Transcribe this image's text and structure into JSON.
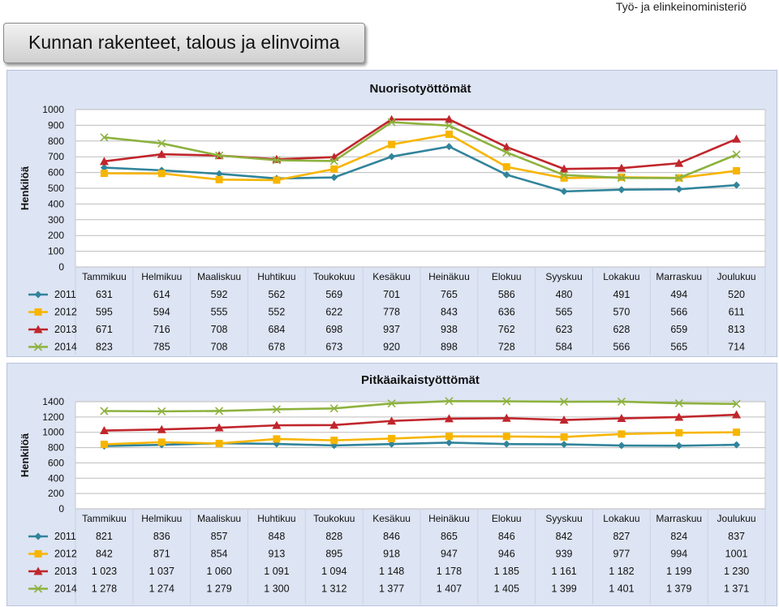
{
  "header": {
    "ministry": "Työ- ja elinkeinoministeriö",
    "title": "Kunnan rakenteet, talous ja elinvoima"
  },
  "chart_data": [
    {
      "type": "line",
      "title": "Nuorisotyöttömät",
      "ylabel": "Henkilöä",
      "ylim": [
        0,
        1000
      ],
      "yticks": [
        "0",
        "100",
        "200",
        "300",
        "400",
        "500",
        "600",
        "700",
        "800",
        "900",
        "1000"
      ],
      "categories": [
        "Tammikuu",
        "Helmikuu",
        "Maaliskuu",
        "Huhtikuu",
        "Toukokuu",
        "Kesäkuu",
        "Heinäkuu",
        "Elokuu",
        "Syyskuu",
        "Lokakuu",
        "Marraskuu",
        "Joulukuu"
      ],
      "grid": true,
      "legend": "data-table",
      "series": [
        {
          "name": "2011",
          "color": "#31849b",
          "marker": "diamond",
          "values": [
            631,
            614,
            592,
            562,
            569,
            701,
            765,
            586,
            480,
            491,
            494,
            520
          ],
          "labels": [
            "631",
            "614",
            "592",
            "562",
            "569",
            "701",
            "765",
            "586",
            "480",
            "491",
            "494",
            "520"
          ]
        },
        {
          "name": "2012",
          "color": "#f7b500",
          "marker": "square",
          "values": [
            595,
            594,
            555,
            552,
            622,
            778,
            843,
            636,
            565,
            570,
            566,
            611
          ],
          "labels": [
            "595",
            "594",
            "555",
            "552",
            "622",
            "778",
            "843",
            "636",
            "565",
            "570",
            "566",
            "611"
          ]
        },
        {
          "name": "2013",
          "color": "#c0262c",
          "marker": "triangle",
          "values": [
            671,
            716,
            708,
            684,
            698,
            937,
            938,
            762,
            623,
            628,
            659,
            813
          ],
          "labels": [
            "671",
            "716",
            "708",
            "684",
            "698",
            "937",
            "938",
            "762",
            "623",
            "628",
            "659",
            "813"
          ]
        },
        {
          "name": "2014",
          "color": "#8db23f",
          "marker": "x",
          "values": [
            823,
            785,
            708,
            678,
            673,
            920,
            898,
            728,
            584,
            566,
            565,
            714
          ],
          "labels": [
            "823",
            "785",
            "708",
            "678",
            "673",
            "920",
            "898",
            "728",
            "584",
            "566",
            "565",
            "714"
          ]
        }
      ]
    },
    {
      "type": "line",
      "title": "Pitkäaikaistyöttömät",
      "ylabel": "Henkilöä",
      "ylim": [
        0,
        1400
      ],
      "yticks": [
        "0",
        "200",
        "400",
        "600",
        "800",
        "1000",
        "1200",
        "1400"
      ],
      "categories": [
        "Tammikuu",
        "Helmikuu",
        "Maaliskuu",
        "Huhtikuu",
        "Toukokuu",
        "Kesäkuu",
        "Heinäkuu",
        "Elokuu",
        "Syyskuu",
        "Lokakuu",
        "Marraskuu",
        "Joulukuu"
      ],
      "grid": true,
      "legend": "data-table",
      "series": [
        {
          "name": "2011",
          "color": "#31849b",
          "marker": "diamond",
          "values": [
            821,
            836,
            857,
            848,
            828,
            846,
            865,
            846,
            842,
            827,
            824,
            837
          ],
          "labels": [
            "821",
            "836",
            "857",
            "848",
            "828",
            "846",
            "865",
            "846",
            "842",
            "827",
            "824",
            "837"
          ]
        },
        {
          "name": "2012",
          "color": "#f7b500",
          "marker": "square",
          "values": [
            842,
            871,
            854,
            913,
            895,
            918,
            947,
            946,
            939,
            977,
            994,
            1001
          ],
          "labels": [
            "842",
            "871",
            "854",
            "913",
            "895",
            "918",
            "947",
            "946",
            "939",
            "977",
            "994",
            "1001"
          ]
        },
        {
          "name": "2013",
          "color": "#c0262c",
          "marker": "triangle",
          "values": [
            1023,
            1037,
            1060,
            1091,
            1094,
            1148,
            1178,
            1185,
            1161,
            1182,
            1199,
            1230
          ],
          "labels": [
            "1 023",
            "1 037",
            "1 060",
            "1 091",
            "1 094",
            "1 148",
            "1 178",
            "1 185",
            "1 161",
            "1 182",
            "1 199",
            "1 230"
          ]
        },
        {
          "name": "2014",
          "color": "#8db23f",
          "marker": "x",
          "values": [
            1278,
            1274,
            1279,
            1300,
            1312,
            1377,
            1407,
            1405,
            1399,
            1401,
            1379,
            1371
          ],
          "labels": [
            "1 278",
            "1 274",
            "1 279",
            "1 300",
            "1 312",
            "1 377",
            "1 407",
            "1 405",
            "1 399",
            "1 401",
            "1 379",
            "1 371"
          ]
        }
      ]
    }
  ]
}
